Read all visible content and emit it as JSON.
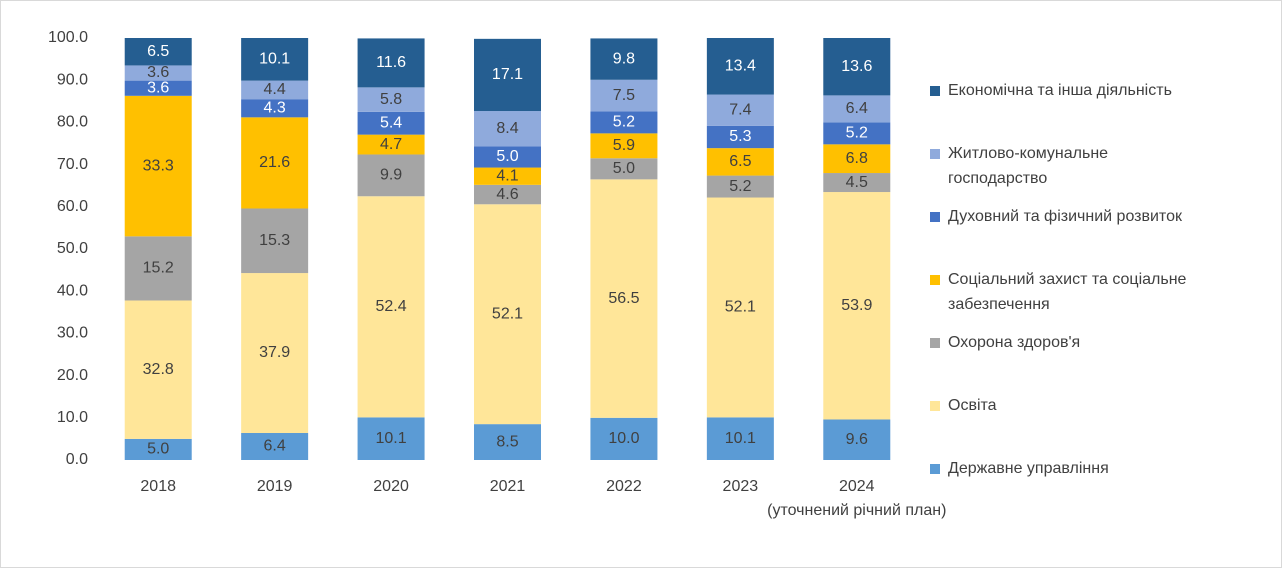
{
  "chart_data": {
    "type": "stacked_bar",
    "categories": [
      "2018",
      "2019",
      "2020",
      "2021",
      "2022",
      "2023",
      "2024\n(уточнений річний план)"
    ],
    "series": [
      {
        "name": "Державне управління",
        "color": "#5b9bd5",
        "values": [
          5.0,
          6.4,
          10.1,
          8.5,
          10.0,
          10.1,
          9.6
        ]
      },
      {
        "name": "Освіта",
        "color": "#ffe699",
        "values": [
          32.8,
          37.9,
          52.4,
          52.1,
          56.5,
          52.1,
          53.9
        ]
      },
      {
        "name": "Охорона здоров'я",
        "color": "#a5a5a5",
        "values": [
          15.2,
          15.3,
          9.9,
          4.6,
          5.0,
          5.2,
          4.5
        ]
      },
      {
        "name": "Соціальний захист та соціальне забезпечення",
        "color": "#ffc000",
        "values": [
          33.3,
          21.6,
          4.7,
          4.1,
          5.9,
          6.5,
          6.8
        ]
      },
      {
        "name": "Духовний та фізичний розвиток",
        "color": "#4472c4",
        "values": [
          3.6,
          4.3,
          5.4,
          5.0,
          5.2,
          5.3,
          5.2
        ]
      },
      {
        "name": "Житлово-комунальне господарство",
        "color": "#8faadc",
        "values": [
          3.6,
          4.4,
          5.8,
          8.4,
          7.5,
          7.4,
          6.4
        ]
      },
      {
        "name": "Економічна та інша діяльність",
        "color": "#255e91",
        "values": [
          6.5,
          10.1,
          11.6,
          17.1,
          9.8,
          13.4,
          13.6
        ]
      }
    ],
    "value_labels_color": {
      "#255e91": "#ffffff",
      "#4472c4": "#ffffff"
    },
    "ylim": [
      0,
      100
    ],
    "yticks": [
      {
        "value": 0,
        "label": "0.0"
      },
      {
        "value": 10,
        "label": "10.0"
      },
      {
        "value": 20,
        "label": "20.0"
      },
      {
        "value": 30,
        "label": "30.0"
      },
      {
        "value": 40,
        "label": "40.0"
      },
      {
        "value": 50,
        "label": "50.0"
      },
      {
        "value": 60,
        "label": "60.0"
      },
      {
        "value": 70,
        "label": "70.0"
      },
      {
        "value": 80,
        "label": "80.0"
      },
      {
        "value": 90,
        "label": "90.0"
      },
      {
        "value": 100,
        "label": "100.0"
      }
    ],
    "legend": "right"
  }
}
